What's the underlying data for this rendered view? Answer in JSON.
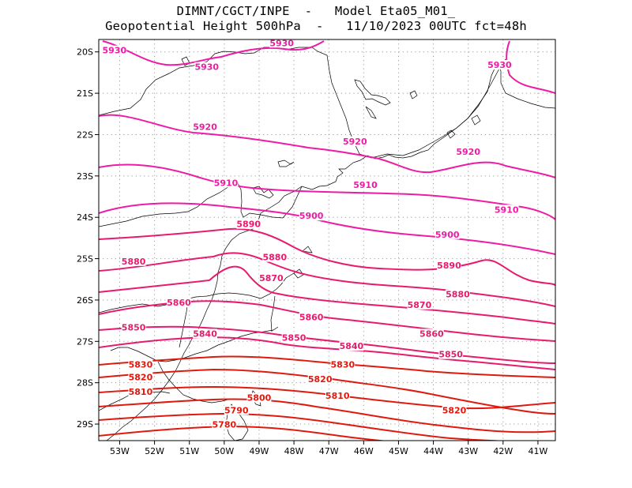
{
  "title": {
    "line1": "DIMNT/CGCT/INPE  -   Model Eta05_M01_",
    "line2": "Geopotential Height 500hPa  -   11/10/2023 00UTC fct=48h"
  },
  "axes": {
    "lon_range": [
      -53.6,
      -40.5
    ],
    "lat_range": [
      -29.4,
      -19.7
    ],
    "lon_ticks": [
      "53W",
      "52W",
      "51W",
      "50W",
      "49W",
      "48W",
      "47W",
      "46W",
      "45W",
      "44W",
      "43W",
      "42W",
      "41W"
    ],
    "lat_ticks": [
      "20S",
      "21S",
      "22S",
      "23S",
      "24S",
      "25S",
      "26S",
      "27S",
      "28S",
      "29S"
    ],
    "grid": "dotted"
  },
  "colors": {
    "high": "#ee1ba4",
    "mid": "#e81a6c",
    "low": "#e0190f",
    "coast": "#000000"
  },
  "contours": [
    {
      "level": 5930,
      "label": "5930",
      "color": "#ee1ba4",
      "labels": [
        [
          -53.15,
          -20.0
        ],
        [
          -50.5,
          -20.4
        ],
        [
          -48.35,
          -19.82
        ],
        [
          -42.1,
          -20.35
        ]
      ]
    },
    {
      "level": 5920,
      "label": "5920",
      "color": "#ee1ba4",
      "labels": [
        [
          -50.55,
          -21.85
        ],
        [
          -46.25,
          -22.2
        ],
        [
          -43.0,
          -22.45
        ]
      ]
    },
    {
      "level": 5910,
      "label": "5910",
      "color": "#ee1ba4",
      "labels": [
        [
          -49.95,
          -23.2
        ],
        [
          -45.95,
          -23.25
        ],
        [
          -41.9,
          -23.85
        ]
      ]
    },
    {
      "level": 5900,
      "label": "5900",
      "color": "#ee1ba4",
      "labels": [
        [
          -47.5,
          -24.0
        ],
        [
          -43.6,
          -24.45
        ]
      ]
    },
    {
      "level": 5890,
      "label": "5890",
      "color": "#e81a6c",
      "labels": [
        [
          -49.3,
          -24.2
        ],
        [
          -43.55,
          -25.2
        ]
      ]
    },
    {
      "level": 5880,
      "label": "5880",
      "color": "#e81a6c",
      "labels": [
        [
          -52.6,
          -25.1
        ],
        [
          -48.55,
          -25.0
        ],
        [
          -43.3,
          -25.9
        ]
      ]
    },
    {
      "level": 5870,
      "label": "5870",
      "color": "#e81a6c",
      "labels": [
        [
          -48.65,
          -25.5
        ],
        [
          -44.4,
          -26.15
        ]
      ]
    },
    {
      "level": 5860,
      "label": "5860",
      "color": "#e81a6c",
      "labels": [
        [
          -51.3,
          -26.1
        ],
        [
          -47.5,
          -26.45
        ],
        [
          -44.05,
          -26.85
        ]
      ]
    },
    {
      "level": 5850,
      "label": "5850",
      "color": "#e81a6c",
      "labels": [
        [
          -52.6,
          -26.7
        ],
        [
          -48.0,
          -26.95
        ],
        [
          -43.5,
          -27.35
        ]
      ]
    },
    {
      "level": 5840,
      "label": "5840",
      "color": "#e81a6c",
      "labels": [
        [
          -50.55,
          -26.85
        ],
        [
          -46.35,
          -27.15
        ]
      ]
    },
    {
      "level": 5830,
      "label": "5830",
      "color": "#e0190f",
      "labels": [
        [
          -52.4,
          -27.6
        ],
        [
          -46.6,
          -27.6
        ]
      ]
    },
    {
      "level": 5820,
      "label": "5820",
      "color": "#e0190f",
      "labels": [
        [
          -52.4,
          -27.9
        ],
        [
          -47.25,
          -27.95
        ],
        [
          -43.4,
          -28.7
        ]
      ]
    },
    {
      "level": 5810,
      "label": "5810",
      "color": "#e0190f",
      "labels": [
        [
          -52.4,
          -28.25
        ],
        [
          -46.75,
          -28.35
        ]
      ]
    },
    {
      "level": 5800,
      "label": "5800",
      "color": "#e0190f",
      "labels": [
        [
          -49.0,
          -28.4
        ]
      ]
    },
    {
      "level": 5790,
      "label": "5790",
      "color": "#e0190f",
      "labels": [
        [
          -49.65,
          -28.7
        ]
      ]
    },
    {
      "level": 5780,
      "label": "5780",
      "color": "#e0190f",
      "labels": [
        [
          -50.0,
          -29.05
        ]
      ]
    }
  ]
}
